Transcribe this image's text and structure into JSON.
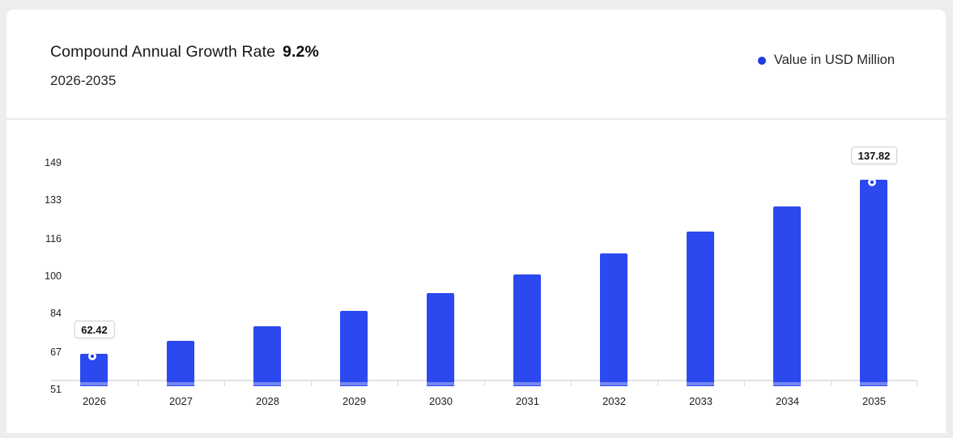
{
  "header": {
    "title": "Compound Annual Growth Rate",
    "cagr_value": "9.2%",
    "subtitle": "2026-2035"
  },
  "legend": {
    "label": "Value in USD Million",
    "marker_color": "#1c3be0"
  },
  "chart_data": {
    "type": "bar",
    "title": "Compound Annual Growth Rate 9.2%, 2026-2035",
    "xlabel": "",
    "ylabel": "Value in USD Million",
    "categories": [
      "2026",
      "2027",
      "2028",
      "2029",
      "2030",
      "2031",
      "2032",
      "2033",
      "2034",
      "2035"
    ],
    "series": [
      {
        "name": "Value in USD Million",
        "values": [
          62.42,
          68.16,
          74.43,
          81.28,
          88.76,
          96.93,
          105.84,
          115.58,
          126.21,
          137.82
        ]
      }
    ],
    "point_labels": [
      {
        "index": 0,
        "text": "62.42"
      },
      {
        "index": 9,
        "text": "137.82"
      }
    ],
    "y_ticks": [
      51,
      67,
      84,
      100,
      116,
      133,
      149
    ],
    "ylim": [
      51,
      160
    ],
    "grid": false,
    "legend_position": "top-right",
    "bar_color": "#2b49ef",
    "bar_base_stripe_color": "#7587f2",
    "marker_color": "#1c3be0",
    "axis_line_color": "#e2e2e5"
  }
}
